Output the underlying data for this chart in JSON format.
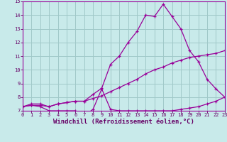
{
  "bg_color": "#c8eaea",
  "grid_color": "#a0c8c8",
  "line_color": "#990099",
  "marker": "+",
  "xlabel": "Windchill (Refroidissement éolien,°C)",
  "xlim": [
    0,
    23
  ],
  "ylim": [
    7,
    15
  ],
  "xticks": [
    0,
    1,
    2,
    3,
    4,
    5,
    6,
    7,
    8,
    9,
    10,
    11,
    12,
    13,
    14,
    15,
    16,
    17,
    18,
    19,
    20,
    21,
    22,
    23
  ],
  "yticks": [
    7,
    8,
    9,
    10,
    11,
    12,
    13,
    14,
    15
  ],
  "line1_x": [
    0,
    1,
    2,
    3,
    4,
    5,
    6,
    7,
    8,
    9,
    10,
    11,
    12,
    13,
    14,
    15,
    16,
    17,
    18,
    19,
    20,
    21,
    22,
    23
  ],
  "line1_y": [
    7.3,
    7.4,
    7.3,
    7.0,
    7.0,
    7.0,
    7.0,
    6.65,
    7.1,
    8.6,
    7.1,
    7.0,
    7.0,
    7.0,
    7.0,
    7.0,
    7.0,
    7.0,
    7.1,
    7.2,
    7.3,
    7.5,
    7.7,
    8.0
  ],
  "line2_x": [
    0,
    1,
    2,
    3,
    4,
    5,
    6,
    7,
    8,
    9,
    10,
    11,
    12,
    13,
    14,
    15,
    16,
    17,
    18,
    19,
    20,
    21,
    22,
    23
  ],
  "line2_y": [
    7.3,
    7.4,
    7.4,
    7.3,
    7.5,
    7.6,
    7.7,
    7.7,
    7.9,
    8.1,
    8.4,
    8.7,
    9.0,
    9.3,
    9.7,
    10.0,
    10.2,
    10.5,
    10.7,
    10.9,
    11.0,
    11.1,
    11.2,
    11.4
  ],
  "line3_x": [
    0,
    1,
    2,
    3,
    4,
    5,
    6,
    7,
    8,
    9,
    10,
    11,
    12,
    13,
    14,
    15,
    16,
    17,
    18,
    19,
    20,
    21,
    22,
    23
  ],
  "line3_y": [
    7.3,
    7.5,
    7.5,
    7.3,
    7.5,
    7.6,
    7.7,
    7.7,
    8.2,
    8.65,
    10.4,
    11.0,
    12.0,
    12.8,
    14.0,
    13.9,
    14.8,
    13.9,
    13.0,
    11.4,
    10.6,
    9.3,
    8.6,
    8.0
  ],
  "font_color": "#660066",
  "tick_fontsize": 5.0,
  "label_fontsize": 6.5
}
